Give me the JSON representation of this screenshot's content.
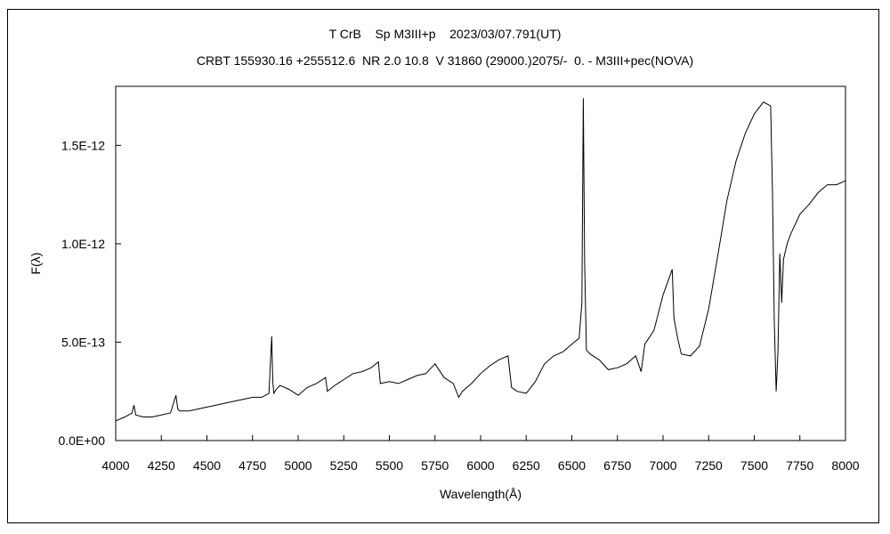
{
  "chart_data": {
    "type": "line",
    "title": "T CrB    Sp M3III+p    2023/03/07.791(UT)",
    "subtitle": "CRBT 155930.16 +255512.6  NR 2.0 10.8  V 31860 (29000.)2075/-  0. - M3III+pec(NOVA)",
    "xlabel": "Wavelength(Å)",
    "ylabel": "F(λ)",
    "xlim": [
      4000,
      8000
    ],
    "ylim": [
      0,
      1.8e-12
    ],
    "grid": false,
    "x_ticks": [
      4000,
      4250,
      4500,
      4750,
      5000,
      5250,
      5500,
      5750,
      6000,
      6250,
      6500,
      6750,
      7000,
      7250,
      7500,
      7750,
      8000
    ],
    "x_tick_labels": [
      "4000",
      "4250",
      "4500",
      "4750",
      "5000",
      "5250",
      "5500",
      "5750",
      "6000",
      "6250",
      "6500",
      "6750",
      "7000",
      "7250",
      "7500",
      "7750",
      "8000"
    ],
    "y_ticks": [
      0,
      5e-13,
      1e-12,
      1.5e-12
    ],
    "y_tick_labels": [
      "0.0E+00",
      "5.0E-13",
      "1.0E-12",
      "1.5E-12"
    ],
    "line_color": "#000000",
    "series": [
      {
        "x": [
          4000,
          4050,
          4090,
          4100,
          4110,
          4150,
          4200,
          4250,
          4300,
          4330,
          4340,
          4350,
          4400,
          4450,
          4500,
          4550,
          4600,
          4650,
          4700,
          4750,
          4800,
          4840,
          4855,
          4861,
          4867,
          4880,
          4900,
          4950,
          5000,
          5050,
          5100,
          5150,
          5160,
          5200,
          5250,
          5300,
          5350,
          5400,
          5440,
          5450,
          5500,
          5550,
          5600,
          5650,
          5700,
          5750,
          5800,
          5850,
          5880,
          5900,
          5950,
          6000,
          6050,
          6100,
          6150,
          6170,
          6200,
          6250,
          6300,
          6350,
          6400,
          6450,
          6500,
          6540,
          6555,
          6563,
          6570,
          6580,
          6600,
          6650,
          6700,
          6750,
          6800,
          6850,
          6880,
          6900,
          6950,
          7000,
          7050,
          7060,
          7080,
          7100,
          7150,
          7200,
          7250,
          7300,
          7350,
          7400,
          7450,
          7500,
          7550,
          7590,
          7600,
          7610,
          7620,
          7630,
          7640,
          7650,
          7660,
          7680,
          7700,
          7750,
          7800,
          7850,
          7900,
          7950,
          8000
        ],
        "y": [
          1e-13,
          1.2e-13,
          1.4e-13,
          1.8e-13,
          1.3e-13,
          1.2e-13,
          1.2e-13,
          1.3e-13,
          1.4e-13,
          2.3e-13,
          1.6e-13,
          1.5e-13,
          1.5e-13,
          1.6e-13,
          1.7e-13,
          1.8e-13,
          1.9e-13,
          2e-13,
          2.1e-13,
          2.2e-13,
          2.2e-13,
          2.4e-13,
          5.3e-13,
          3e-13,
          2.4e-13,
          2.6e-13,
          2.8e-13,
          2.6e-13,
          2.3e-13,
          2.7e-13,
          2.9e-13,
          3.2e-13,
          2.5e-13,
          2.8e-13,
          3.1e-13,
          3.4e-13,
          3.5e-13,
          3.7e-13,
          4e-13,
          2.9e-13,
          3e-13,
          2.9e-13,
          3.1e-13,
          3.3e-13,
          3.4e-13,
          3.9e-13,
          3.2e-13,
          2.9e-13,
          2.2e-13,
          2.5e-13,
          2.9e-13,
          3.4e-13,
          3.8e-13,
          4.1e-13,
          4.3e-13,
          2.7e-13,
          2.5e-13,
          2.4e-13,
          3e-13,
          3.9e-13,
          4.3e-13,
          4.5e-13,
          4.9e-13,
          5.2e-13,
          7e-13,
          1.74e-12,
          9e-13,
          4.6e-13,
          4.4e-13,
          4.1e-13,
          3.6e-13,
          3.7e-13,
          3.9e-13,
          4.3e-13,
          3.5e-13,
          4.9e-13,
          5.6e-13,
          7.4e-13,
          8.7e-13,
          6.2e-13,
          5.2e-13,
          4.4e-13,
          4.3e-13,
          4.8e-13,
          6.7e-13,
          9.4e-13,
          1.22e-12,
          1.42e-12,
          1.56e-12,
          1.66e-12,
          1.72e-12,
          1.7e-12,
          1.25e-12,
          6e-13,
          2.5e-13,
          4.5e-13,
          9.5e-13,
          7e-13,
          9.2e-13,
          1e-12,
          1.05e-12,
          1.15e-12,
          1.2e-12,
          1.26e-12,
          1.3e-12,
          1.3e-12,
          1.32e-12
        ]
      }
    ]
  }
}
